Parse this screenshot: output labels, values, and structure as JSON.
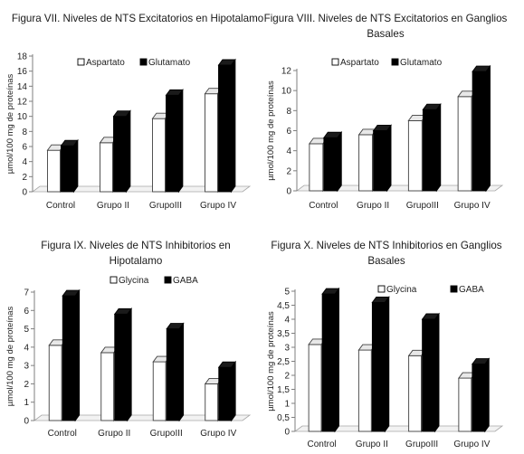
{
  "chart_data": [
    {
      "type": "bar",
      "title": "Figura VII. Niveles de NTS Excitatorios en Hipotalamo",
      "ylabel": "µmol/100 mg de proteínas",
      "xlabel": "",
      "categories": [
        "Control",
        "Grupo II",
        "GrupoIII",
        "Grupo IV"
      ],
      "series": [
        {
          "name": "Aspartato",
          "color": "#ffffff",
          "values": [
            5.5,
            6.5,
            9.7,
            13
          ]
        },
        {
          "name": "Glutamato",
          "color": "#000000",
          "values": [
            6.1,
            10,
            12.8,
            16.8
          ]
        }
      ],
      "ylim": [
        0,
        18
      ],
      "yticks": [
        "0",
        "2",
        "4",
        "6",
        "8",
        "10",
        "12",
        "14",
        "16",
        "18"
      ],
      "legend": "top-center",
      "grid": false
    },
    {
      "type": "bar",
      "title": "Figura VIII. Niveles de NTS Excitatorios en Ganglios Basales",
      "ylabel": "µmol/100 mg de proteínas",
      "xlabel": "",
      "categories": [
        "Control",
        "Grupo II",
        "GrupoIII",
        "Grupo IV"
      ],
      "series": [
        {
          "name": "Aspartato",
          "color": "#ffffff",
          "values": [
            4.7,
            5.6,
            7,
            9.4
          ]
        },
        {
          "name": "Glutamato",
          "color": "#000000",
          "values": [
            5.3,
            6,
            8.1,
            11.9
          ]
        }
      ],
      "ylim": [
        0,
        12
      ],
      "yticks": [
        "0",
        "2",
        "4",
        "6",
        "8",
        "10",
        "12"
      ],
      "legend": "top-center",
      "grid": false
    },
    {
      "type": "bar",
      "title": "Figura IX. Niveles de NTS Inhibitorios en Hipotalamo",
      "ylabel": "µmol/100 mg de proteínas",
      "xlabel": "",
      "categories": [
        "Control",
        "Grupo II",
        "GrupoIII",
        "Grupo IV"
      ],
      "series": [
        {
          "name": "Glycina",
          "color": "#ffffff",
          "values": [
            4.1,
            3.7,
            3.2,
            2
          ]
        },
        {
          "name": "GABA",
          "color": "#000000",
          "values": [
            6.8,
            5.8,
            5,
            2.9
          ]
        }
      ],
      "ylim": [
        0,
        7
      ],
      "yticks": [
        "0",
        "1",
        "2",
        "3",
        "4",
        "5",
        "6",
        "7"
      ],
      "legend": "top-center",
      "grid": false
    },
    {
      "type": "bar",
      "title": "Figura X. Niveles de NTS Inhibitorios en Ganglios Basales",
      "ylabel": "µmol/100 mg de proteínas",
      "xlabel": "",
      "categories": [
        "Control",
        "Grupo II",
        "GrupoIII",
        "Grupo IV"
      ],
      "series": [
        {
          "name": "Glycina",
          "color": "#ffffff",
          "values": [
            3.1,
            2.9,
            2.7,
            1.9
          ]
        },
        {
          "name": "GABA",
          "color": "#000000",
          "values": [
            4.9,
            4.6,
            4,
            2.4
          ]
        }
      ],
      "ylim": [
        0,
        5
      ],
      "yticks": [
        "0",
        "0,5",
        "1",
        "1,5",
        "2",
        "2,5",
        "3",
        "3,5",
        "4",
        "4,5",
        "5"
      ],
      "legend": "top-center",
      "grid": false
    }
  ],
  "panels": [
    {
      "title_lines": [
        "Figura VII. Niveles de NTS Excitatorios en Hipotalamo"
      ],
      "ylabel": "µmol/100 mg de proteínas",
      "categories": [
        "Control",
        "Grupo II",
        "GrupoIII",
        "Grupo IV"
      ],
      "legend": [
        "Aspartato",
        "Glutamato"
      ]
    },
    {
      "title_lines": [
        "Figura VIII. Niveles de NTS Excitatorios en Ganglios",
        "Basales"
      ],
      "ylabel": "µmol/100 mg de proteínas",
      "categories": [
        "Control",
        "Grupo II",
        "GrupoIII",
        "Grupo IV"
      ],
      "legend": [
        "Aspartato",
        "Glutamato"
      ]
    },
    {
      "title_lines": [
        "Figura IX. Niveles de NTS Inhibitorios en",
        "Hipotalamo"
      ],
      "ylabel": "µmol/100 mg de proteínas",
      "categories": [
        "Control",
        "Grupo II",
        "GrupoIII",
        "Grupo IV"
      ],
      "legend": [
        "Glycina",
        "GABA"
      ]
    },
    {
      "title_lines": [
        "Figura X. Niveles de NTS Inhibitorios en Ganglios",
        "Basales"
      ],
      "ylabel": "µmol/100 mg de proteínas",
      "categories": [
        "Control",
        "Grupo II",
        "GrupoIII",
        "Grupo IV"
      ],
      "legend": [
        "Glycina",
        "GABA"
      ]
    }
  ],
  "colors": {
    "background": "#ffffff",
    "light_bar": "#ffffff",
    "dark_bar": "#000000",
    "axis": "#7f7f7f",
    "floor": "#f2f2f2"
  }
}
